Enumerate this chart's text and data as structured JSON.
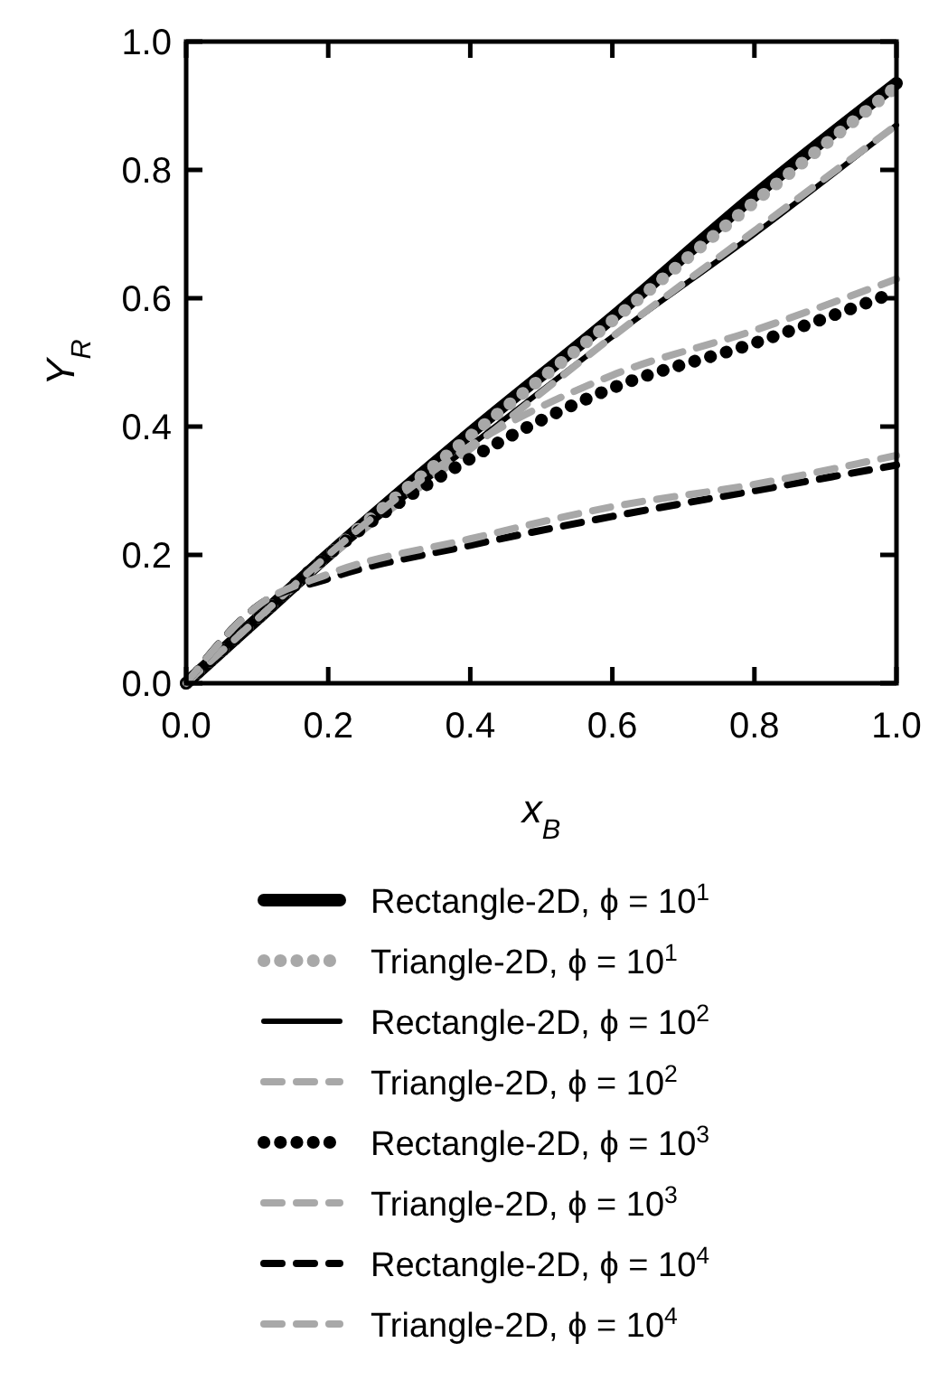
{
  "chart_data": {
    "type": "line",
    "xlabel": "x$_{B}$",
    "ylabel": "Y$_{R}$",
    "xlim": [
      0,
      1
    ],
    "ylim": [
      0,
      1
    ],
    "xticks": [
      {
        "value": 0,
        "label": "0.0"
      },
      {
        "value": 0.2,
        "label": "0.2"
      },
      {
        "value": 0.4,
        "label": "0.4"
      },
      {
        "value": 0.6,
        "label": "0.6"
      },
      {
        "value": 0.8,
        "label": "0.8"
      },
      {
        "value": 1,
        "label": "1.0"
      }
    ],
    "yticks": [
      {
        "value": 0,
        "label": "0.0"
      },
      {
        "value": 0.2,
        "label": "0.2"
      },
      {
        "value": 0.4,
        "label": "0.4"
      },
      {
        "value": 0.6,
        "label": "0.6"
      },
      {
        "value": 0.8,
        "label": "0.8"
      },
      {
        "value": 1,
        "label": "1.0"
      }
    ],
    "x": [
      0,
      0.1,
      0.2,
      0.4,
      0.6,
      0.8,
      1
    ],
    "legend": "bottom",
    "grid": false,
    "series": [
      {
        "name": "Rectangle-2D,  ϕ = 10$^{1}$",
        "color": "#000000",
        "line_style": "solid",
        "values": [
          0,
          0.1,
          0.2,
          0.39,
          0.57,
          0.76,
          0.935
        ]
      },
      {
        "name": "Triangle-2D,  ϕ = 10$^{1}$",
        "color": "#a8a8a8",
        "line_style": "dotted",
        "values": [
          0,
          0.1,
          0.2,
          0.385,
          0.565,
          0.75,
          0.93
        ]
      },
      {
        "name": "Rectangle-2D,  ϕ = 10$^{2}$",
        "color": "#000000",
        "line_style": "solid",
        "values": [
          0,
          0.1,
          0.195,
          0.37,
          0.54,
          0.7,
          0.87
        ]
      },
      {
        "name": "Triangle-2D,  ϕ = 10$^{2}$",
        "color": "#a8a8a8",
        "line_style": "dashed",
        "values": [
          0,
          0.1,
          0.195,
          0.365,
          0.54,
          0.705,
          0.87
        ]
      },
      {
        "name": "Rectangle-2D,  ϕ = 10$^{3}$",
        "color": "#000000",
        "line_style": "dotted",
        "values": [
          0,
          0.1,
          0.2,
          0.35,
          0.46,
          0.53,
          0.61
        ]
      },
      {
        "name": "Triangle-2D,  ϕ = 10$^{3}$",
        "color": "#a8a8a8",
        "line_style": "dashed",
        "values": [
          0,
          0.1,
          0.2,
          0.37,
          0.48,
          0.55,
          0.63
        ]
      },
      {
        "name": "Rectangle-2D,  ϕ = 10$^{4}$",
        "color": "#000000",
        "line_style": "dashed",
        "values": [
          0,
          0.12,
          0.163,
          0.215,
          0.26,
          0.3,
          0.34
        ]
      },
      {
        "name": "Triangle-2D,  ϕ = 10$^{4}$",
        "color": "#a8a8a8",
        "line_style": "dashed",
        "values": [
          0,
          0.12,
          0.17,
          0.225,
          0.275,
          0.31,
          0.355
        ]
      }
    ]
  }
}
